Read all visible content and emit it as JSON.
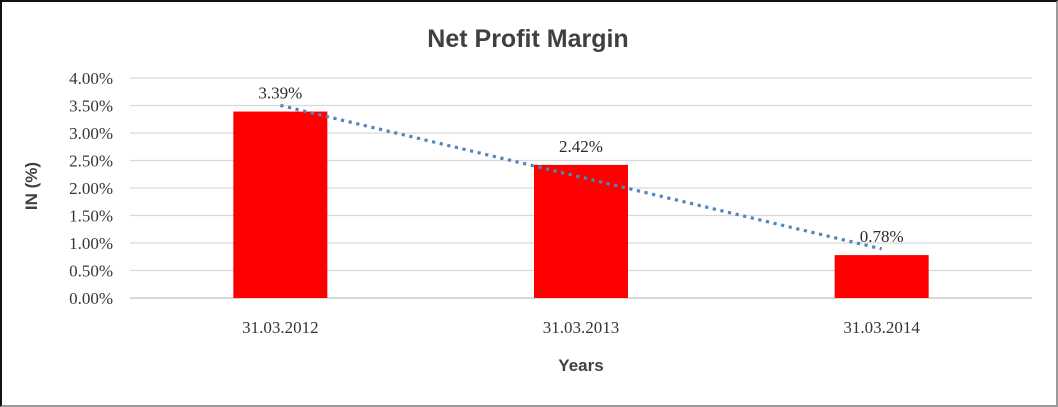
{
  "window": {
    "background": "#ffffff",
    "border_color": "#111111"
  },
  "chart_data": {
    "type": "bar",
    "title": "Net Profit Margin",
    "xlabel": "Years",
    "ylabel": "IN (%)",
    "categories": [
      "31.03.2012",
      "31.03.2013",
      "31.03.2014"
    ],
    "series": [
      {
        "name": "Net Profit Margin",
        "values": [
          3.39,
          2.42,
          0.78
        ]
      }
    ],
    "data_labels": [
      "3.39%",
      "2.42%",
      "0.78%"
    ],
    "ylim": [
      0,
      4
    ],
    "ytick_step": 0.5,
    "ytick_labels": [
      "0.00%",
      "0.50%",
      "1.00%",
      "1.50%",
      "2.00%",
      "2.50%",
      "3.00%",
      "3.50%",
      "4.00%"
    ],
    "grid": true,
    "legend": false,
    "bar_color": "#ff0000",
    "gridline_color": "#d9d9d9",
    "axis_line_color": "#bfbfbf",
    "text_color": "#404040",
    "trendline": {
      "type": "linear",
      "dotted": true,
      "color": "#4e86c0"
    }
  }
}
